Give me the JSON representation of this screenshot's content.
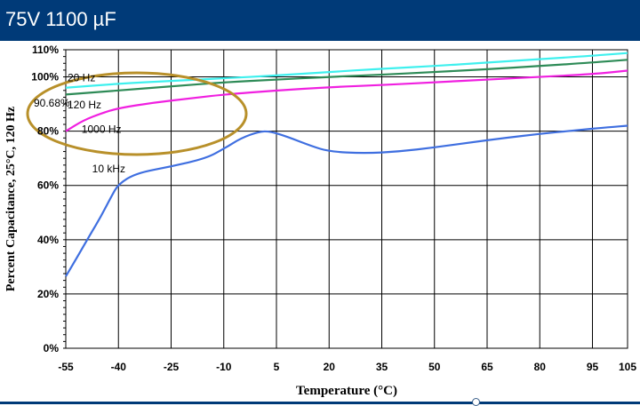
{
  "header": {
    "title": "75V 1100 µF"
  },
  "colors": {
    "header_bg": "#003a78",
    "series_20hz": "#3ff0ee",
    "series_120hz": "#2e8b57",
    "series_1000hz": "#f020e0",
    "series_10khz": "#3f6fe0",
    "highlight_ellipse": "#b8902a",
    "callout_text": "#9b1bb0"
  },
  "chart_data": {
    "type": "line",
    "xlabel": "Temperature (°C)",
    "ylabel": "Percent Capacitance, 25°C, 120 Hz",
    "xlim": [
      -55,
      105
    ],
    "ylim": [
      0,
      110
    ],
    "x_ticks": [
      "-55",
      "-40",
      "-25",
      "-10",
      "5",
      "20",
      "35",
      "50",
      "65",
      "80",
      "95",
      "105"
    ],
    "y_ticks": [
      "0%",
      "20%",
      "40%",
      "60%",
      "80%",
      "100%",
      "110%"
    ],
    "grid": true,
    "series": [
      {
        "name": "20 Hz",
        "x": [
          -55,
          -40,
          -25,
          -10,
          5,
          20,
          35,
          50,
          65,
          80,
          95,
          105
        ],
        "y": [
          96,
          97.5,
          98.5,
          99.5,
          100.5,
          101.8,
          103,
          104,
          105.3,
          106.5,
          107.8,
          108.8
        ]
      },
      {
        "name": "120 Hz",
        "x": [
          -55,
          -40,
          -25,
          -10,
          5,
          20,
          35,
          50,
          65,
          80,
          95,
          105
        ],
        "y": [
          93.5,
          95,
          96.5,
          98,
          99,
          100,
          100.8,
          101.8,
          102.8,
          104,
          105.3,
          106.3
        ]
      },
      {
        "name": "1000 Hz",
        "x": [
          -55,
          -50,
          -45,
          -40,
          -30,
          -20,
          -10,
          5,
          20,
          35,
          50,
          65,
          80,
          95,
          105
        ],
        "y": [
          80,
          84,
          86.5,
          88.5,
          90.5,
          92,
          93.5,
          95,
          96.2,
          97,
          98,
          99,
          100,
          101,
          102.3
        ]
      },
      {
        "name": "10 kHz",
        "x": [
          -55,
          -52,
          -48,
          -45,
          -42,
          -40,
          -35,
          -25,
          -15,
          -10,
          -5,
          0,
          3,
          8,
          15,
          20,
          30,
          40,
          50,
          60,
          70,
          80,
          90,
          100,
          105
        ],
        "y": [
          26.5,
          33,
          42,
          48.5,
          56,
          60.5,
          64.5,
          67,
          70,
          73.5,
          77.5,
          79.8,
          80,
          78,
          74.5,
          72.5,
          71.8,
          72.5,
          74,
          75.8,
          77.5,
          79,
          80.3,
          81.5,
          82
        ]
      }
    ],
    "annotations": [
      {
        "text": "20 Hz",
        "x": -55,
        "y": 100
      },
      {
        "text": "120 Hz",
        "x": -55,
        "y": 90
      },
      {
        "text": "1000 Hz",
        "x": -51,
        "y": 81
      },
      {
        "text": "10 kHz",
        "x": -48,
        "y": 66.5
      },
      {
        "text": "90.68%",
        "x": -55,
        "y": 90.68
      }
    ]
  }
}
